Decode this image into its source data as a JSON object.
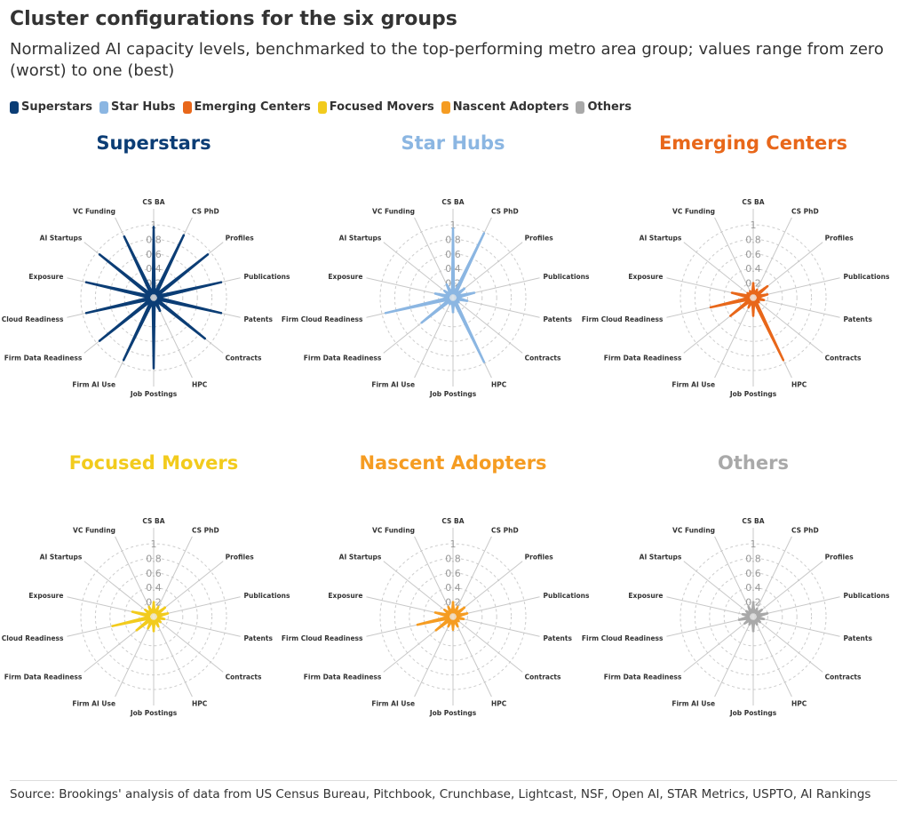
{
  "header": {
    "title": "Cluster configurations for the six groups",
    "subtitle": "Normalized AI capacity levels, benchmarked to the top-performing metro area group; values range from zero (worst) to one (best)"
  },
  "source": "Source: Brookings' analysis of data from US Census Bureau, Pitchbook, Crunchbase, Lightcast, NSF, Open AI, STAR Metrics, USPTO, AI Rankings",
  "chart_data": {
    "type": "radar",
    "axes": [
      "CS BA",
      "CS PhD",
      "Profiles",
      "Publications",
      "Patents",
      "Contracts",
      "HPC",
      "Job Postings",
      "Firm AI Use",
      "Firm Data Readiness",
      "Firm Cloud Readiness",
      "Exposure",
      "AI Startups",
      "VC Funding"
    ],
    "radial_ticks": [
      "0",
      "0.2",
      "0.4",
      "0.6",
      "0.8",
      "1"
    ],
    "rmax": 1,
    "legend": [
      "Superstars",
      "Star Hubs",
      "Emerging Centers",
      "Focused Movers",
      "Nascent Adopters",
      "Others"
    ],
    "legend_placement": "top-left",
    "series": [
      {
        "name": "Superstars",
        "color": "#0b3d75",
        "fill": "#c3cad3",
        "values": [
          0.97,
          0.95,
          0.95,
          0.95,
          0.95,
          0.9,
          0.2,
          0.97,
          0.95,
          0.95,
          0.95,
          0.95,
          0.95,
          0.93
        ]
      },
      {
        "name": "Star Hubs",
        "color": "#8bb6e2",
        "fill": "#dbe7f3",
        "values": [
          0.95,
          0.98,
          0.2,
          0.3,
          0.2,
          0.1,
          0.98,
          0.2,
          0.1,
          0.55,
          0.95,
          0.25,
          0.15,
          0.2
        ]
      },
      {
        "name": "Emerging Centers",
        "color": "#e8671a",
        "fill": "#fbdcc7",
        "values": [
          0.2,
          0.12,
          0.25,
          0.2,
          0.15,
          0.1,
          0.95,
          0.25,
          0.15,
          0.4,
          0.6,
          0.3,
          0.1,
          0.1
        ]
      },
      {
        "name": "Focused Movers",
        "color": "#f2cb1d",
        "fill": "#fbf1c3",
        "values": [
          0.2,
          0.15,
          0.2,
          0.2,
          0.15,
          0.12,
          0.15,
          0.2,
          0.18,
          0.3,
          0.58,
          0.3,
          0.15,
          0.15
        ]
      },
      {
        "name": "Nascent Adopters",
        "color": "#f59c22",
        "fill": "#fce1bd",
        "values": [
          0.2,
          0.15,
          0.2,
          0.2,
          0.15,
          0.1,
          0.15,
          0.18,
          0.15,
          0.3,
          0.5,
          0.25,
          0.15,
          0.15
        ]
      },
      {
        "name": "Others",
        "color": "#a9a9a9",
        "fill": "#e4e4e4",
        "values": [
          0.2,
          0.12,
          0.15,
          0.2,
          0.15,
          0.12,
          0.12,
          0.2,
          0.12,
          0.15,
          0.2,
          0.15,
          0.12,
          0.15
        ]
      }
    ]
  }
}
